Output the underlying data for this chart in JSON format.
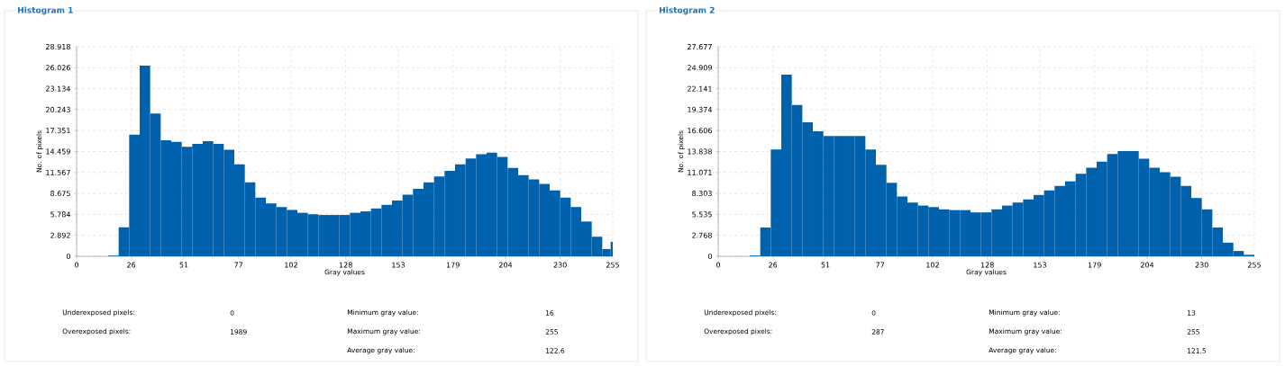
{
  "chart_data": [
    {
      "type": "histogram",
      "title": "Histogram 1",
      "xlabel": "Gray values",
      "ylabel": "No. of pixels",
      "color": "#0062ad",
      "grid": true,
      "bins": [
        15,
        20,
        25,
        30,
        35,
        40,
        45,
        50,
        55,
        60,
        65,
        70,
        75,
        80,
        85,
        90,
        95,
        100,
        105,
        110,
        115,
        120,
        125,
        130,
        135,
        140,
        145,
        150,
        155,
        160,
        165,
        170,
        175,
        180,
        185,
        190,
        195,
        200,
        205,
        210,
        215,
        220,
        225,
        230,
        235,
        240,
        245,
        250,
        254,
        255
      ],
      "values": [
        0.1,
        4.0,
        16.8,
        26.3,
        19.7,
        16.0,
        15.8,
        15.1,
        15.5,
        15.9,
        15.5,
        14.7,
        12.7,
        10.2,
        8.1,
        7.3,
        6.8,
        6.4,
        6.0,
        5.8,
        5.7,
        5.7,
        5.7,
        6.0,
        6.2,
        6.6,
        7.1,
        7.7,
        8.5,
        9.3,
        10.2,
        11.0,
        11.8,
        12.7,
        13.5,
        14.1,
        14.3,
        13.7,
        12.2,
        11.2,
        10.6,
        10.0,
        9.1,
        8.1,
        6.8,
        4.8,
        2.7,
        1.0,
        2.0
      ],
      "xlim": [
        0,
        255
      ],
      "ylim": [
        0,
        28.918
      ],
      "xticks": [
        0,
        26,
        51,
        77,
        102,
        128,
        153,
        179,
        204,
        230,
        255
      ],
      "yticks": [
        0,
        2.892,
        5.784,
        8.675,
        11.567,
        14.459,
        17.351,
        20.243,
        23.134,
        26.026,
        28.918
      ],
      "annotations": [
        "Underexposed pixels:",
        "0",
        "Minimum gray value:",
        "16",
        "Overexposed pixels:",
        "1989",
        "Maximum gray value:",
        "255",
        "Average gray value:",
        "122.6"
      ]
    },
    {
      "type": "histogram",
      "title": "Histogram 2",
      "xlabel": "Gray values",
      "ylabel": "No. of pixels",
      "color": "#0062ad",
      "grid": true,
      "bins": [
        15,
        20,
        25,
        30,
        35,
        40,
        45,
        50,
        55,
        60,
        65,
        70,
        75,
        80,
        85,
        90,
        95,
        100,
        105,
        110,
        115,
        120,
        125,
        130,
        135,
        140,
        145,
        150,
        155,
        160,
        165,
        170,
        175,
        180,
        185,
        190,
        195,
        200,
        205,
        210,
        215,
        220,
        225,
        230,
        235,
        240,
        245,
        250,
        255
      ],
      "values": [
        0.1,
        3.8,
        14.1,
        24.0,
        20.0,
        17.7,
        16.5,
        15.9,
        15.9,
        15.9,
        15.9,
        14.1,
        12.1,
        9.7,
        7.9,
        7.1,
        6.7,
        6.5,
        6.2,
        6.1,
        6.1,
        5.8,
        5.8,
        6.2,
        6.7,
        7.1,
        7.5,
        8.1,
        8.7,
        9.3,
        9.9,
        10.9,
        11.7,
        12.5,
        13.5,
        13.9,
        13.9,
        12.9,
        11.7,
        11.1,
        10.5,
        9.3,
        7.7,
        6.2,
        3.8,
        1.8,
        0.7,
        0.2
      ],
      "xlim": [
        0,
        255
      ],
      "ylim": [
        0,
        27.677
      ],
      "xticks": [
        0,
        26,
        51,
        77,
        102,
        128,
        153,
        179,
        204,
        230,
        255
      ],
      "yticks": [
        0,
        2.768,
        5.535,
        8.303,
        11.071,
        13.838,
        16.606,
        19.374,
        22.141,
        24.909,
        27.677
      ],
      "annotations": [
        "Underexposed pixels:",
        "0",
        "Minimum gray value:",
        "13",
        "Overexposed pixels:",
        "287",
        "Maximum gray value:",
        "255",
        "Average gray value:",
        "121.5"
      ]
    }
  ]
}
